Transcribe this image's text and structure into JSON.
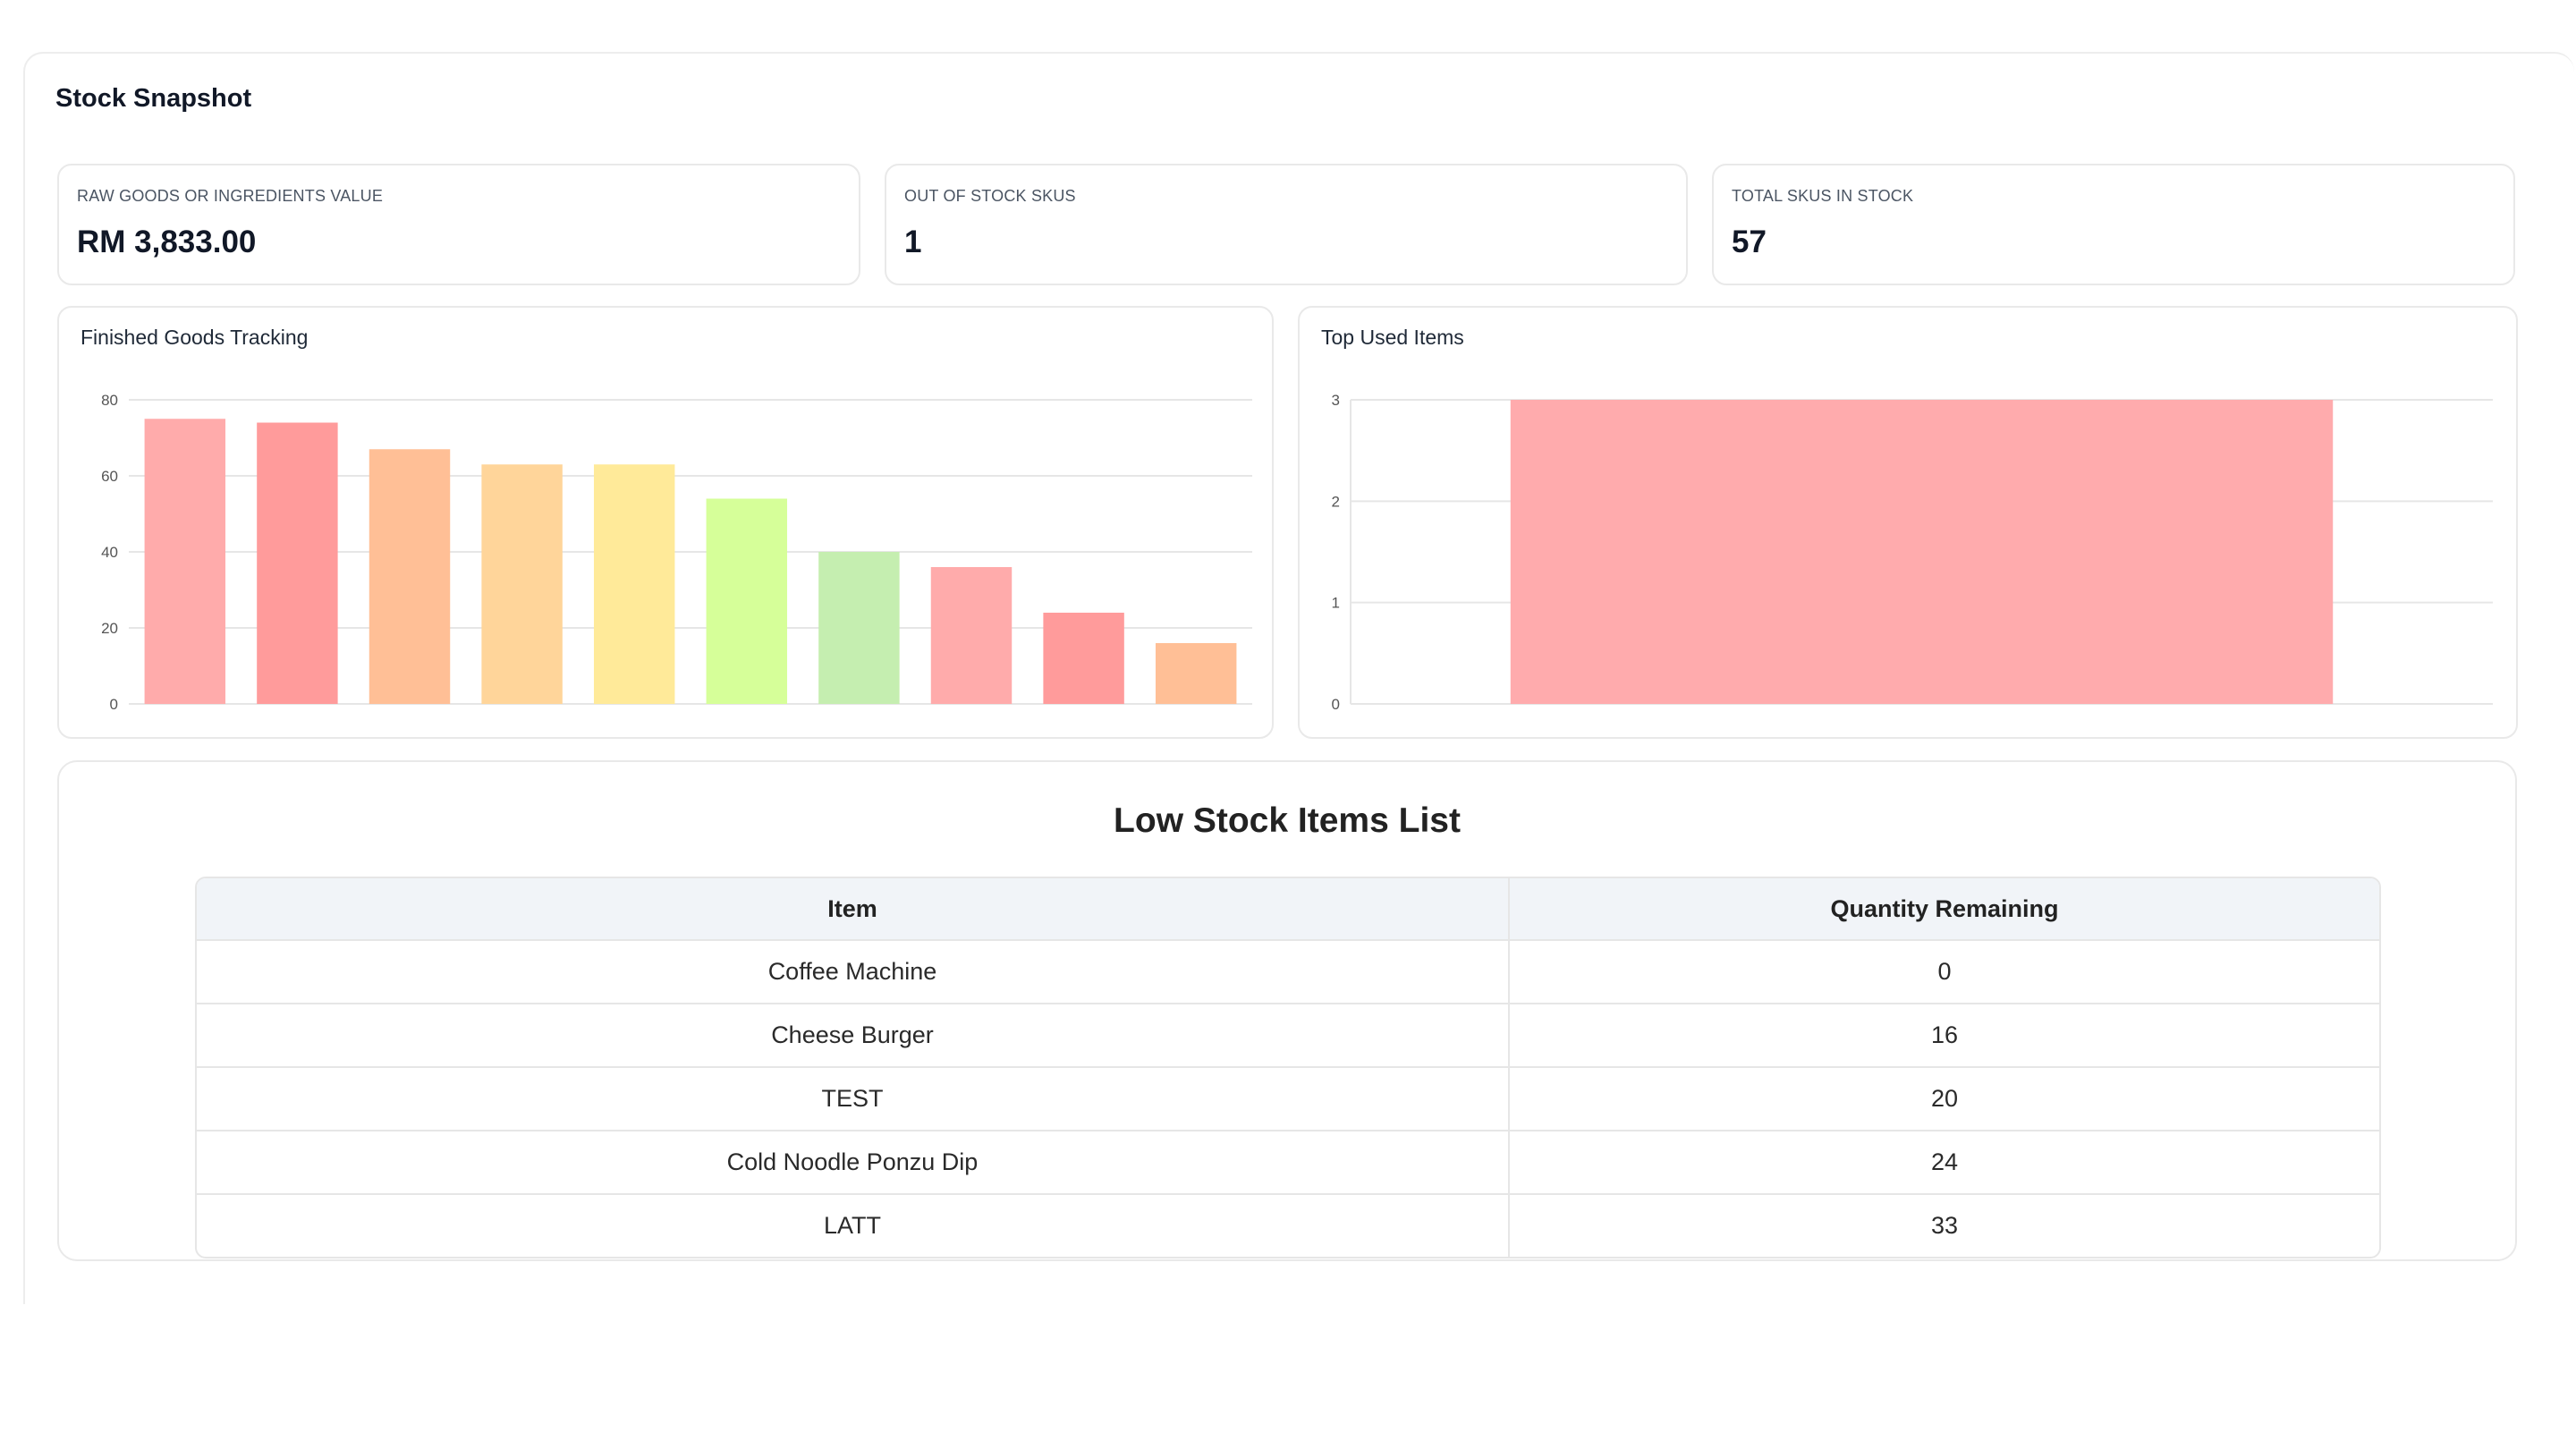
{
  "page": {
    "title": "Stock Snapshot"
  },
  "stats": [
    {
      "label": "RAW GOODS OR INGREDIENTS VALUE",
      "value": "RM 3,833.00"
    },
    {
      "label": "OUT OF STOCK SKUS",
      "value": "1"
    },
    {
      "label": "TOTAL SKUS IN STOCK",
      "value": "57"
    }
  ],
  "chart_data": [
    {
      "type": "bar",
      "title": "Finished Goods Tracking",
      "categories": [
        "",
        "",
        "",
        "",
        "",
        "",
        "",
        "",
        "",
        ""
      ],
      "values": [
        75,
        74,
        67,
        63,
        63,
        54,
        40,
        36,
        24,
        16
      ],
      "colors": [
        "#ffabab",
        "#ff9b9b",
        "#ffbf96",
        "#ffd59a",
        "#ffea99",
        "#d6ff99",
        "#c5eeb0",
        "#ffabab",
        "#ff9b9b",
        "#ffbf96"
      ],
      "ylim": [
        0,
        80
      ],
      "yticks": [
        0,
        20,
        40,
        60,
        80
      ],
      "grid": true
    },
    {
      "type": "bar",
      "title": "Top Used Items",
      "categories": [
        ""
      ],
      "values": [
        3
      ],
      "colors": [
        "#ffabad"
      ],
      "ylim": [
        0,
        3
      ],
      "yticks": [
        0,
        1,
        2,
        3
      ],
      "grid": true
    }
  ],
  "low_stock": {
    "heading": "Low Stock Items List",
    "columns": [
      "Item",
      "Quantity Remaining"
    ],
    "rows": [
      [
        "Coffee Machine",
        "0"
      ],
      [
        "Cheese Burger",
        "16"
      ],
      [
        "TEST",
        "20"
      ],
      [
        "Cold Noodle Ponzu Dip",
        "24"
      ],
      [
        "LATT",
        "33"
      ]
    ]
  }
}
